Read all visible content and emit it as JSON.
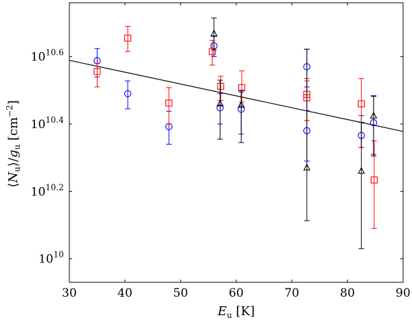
{
  "chart_data": {
    "type": "scatter",
    "title": "",
    "xlabel": "E_u [K]",
    "ylabel": "⟨N_u⟩/g_u [cm^-2]",
    "xlim": [
      30,
      90
    ],
    "ylim_log10": [
      9.93,
      10.76
    ],
    "yscale": "log",
    "x_ticks": [
      30,
      40,
      50,
      60,
      70,
      80,
      90
    ],
    "x_tick_labels": [
      "30",
      "40",
      "50",
      "60",
      "70",
      "80",
      "90"
    ],
    "y_ticks_log10": [
      10.0,
      10.2,
      10.4,
      10.6
    ],
    "y_tick_labels": [
      {
        "base": "10",
        "exp": "10"
      },
      {
        "base": "10",
        "exp": "10.2"
      },
      {
        "base": "10",
        "exp": "10.4"
      },
      {
        "base": "10",
        "exp": "10.6"
      }
    ],
    "x_axis_label": {
      "E": "E",
      "sub": "u",
      "unit": " [K]"
    },
    "y_axis_label": {
      "open": "⟨",
      "N": "N",
      "sub1": "u",
      "mid": "⟩/",
      "g": "g",
      "sub2": "u",
      "unit": " [cm",
      "exp": "−2",
      "close": "]"
    },
    "fit_line": {
      "color": "#000000",
      "points": [
        [
          30,
          10.589
        ],
        [
          90,
          10.378
        ]
      ]
    },
    "series": [
      {
        "name": "circles",
        "marker": "circle",
        "color": "#0000ff",
        "points": [
          {
            "x": 35.0,
            "y": 10.588,
            "lo": 10.54,
            "hi": 10.624
          },
          {
            "x": 40.5,
            "y": 10.49,
            "lo": 10.445,
            "hi": 10.528
          },
          {
            "x": 47.9,
            "y": 10.392,
            "lo": 10.34,
            "hi": 10.438
          },
          {
            "x": 56.0,
            "y": 10.632,
            "lo": 10.6,
            "hi": 10.66
          },
          {
            "x": 57.1,
            "y": 10.448,
            "lo": 10.4,
            "hi": 10.49
          },
          {
            "x": 60.9,
            "y": 10.444,
            "lo": 10.37,
            "hi": 10.495
          },
          {
            "x": 72.7,
            "y": 10.57,
            "lo": 10.51,
            "hi": 10.622
          },
          {
            "x": 72.7,
            "y": 10.38,
            "lo": 10.29,
            "hi": 10.44
          },
          {
            "x": 82.5,
            "y": 10.366,
            "lo": 10.33,
            "hi": 10.425
          },
          {
            "x": 84.7,
            "y": 10.404,
            "lo": 10.31,
            "hi": 10.484
          }
        ]
      },
      {
        "name": "squares",
        "marker": "square",
        "color": "#ff0000",
        "points": [
          {
            "x": 35.0,
            "y": 10.556,
            "lo": 10.51,
            "hi": 10.58
          },
          {
            "x": 40.5,
            "y": 10.655,
            "lo": 10.615,
            "hi": 10.69
          },
          {
            "x": 47.9,
            "y": 10.462,
            "lo": 10.4,
            "hi": 10.508
          },
          {
            "x": 55.7,
            "y": 10.615,
            "lo": 10.575,
            "hi": 10.648
          },
          {
            "x": 57.2,
            "y": 10.512,
            "lo": 10.47,
            "hi": 10.542
          },
          {
            "x": 61.0,
            "y": 10.508,
            "lo": 10.465,
            "hi": 10.558
          },
          {
            "x": 72.7,
            "y": 10.488,
            "lo": 10.41,
            "hi": 10.535
          },
          {
            "x": 72.7,
            "y": 10.478,
            "lo": 10.41,
            "hi": 10.528
          },
          {
            "x": 82.5,
            "y": 10.46,
            "lo": 10.33,
            "hi": 10.535
          },
          {
            "x": 84.8,
            "y": 10.234,
            "lo": 10.09,
            "hi": 10.35
          }
        ]
      },
      {
        "name": "triangles",
        "marker": "triangle",
        "color": "#000000",
        "points": [
          {
            "x": 56.0,
            "y": 10.668,
            "lo": 10.62,
            "hi": 10.715
          },
          {
            "x": 57.1,
            "y": 10.46,
            "lo": 10.355,
            "hi": 10.53
          },
          {
            "x": 60.9,
            "y": 10.456,
            "lo": 10.345,
            "hi": 10.5
          },
          {
            "x": 72.7,
            "y": 10.27,
            "lo": 10.113,
            "hi": 10.622
          },
          {
            "x": 82.5,
            "y": 10.26,
            "lo": 10.03,
            "hi": 10.405
          },
          {
            "x": 84.7,
            "y": 10.424,
            "lo": 10.305,
            "hi": 10.482
          }
        ]
      }
    ]
  }
}
